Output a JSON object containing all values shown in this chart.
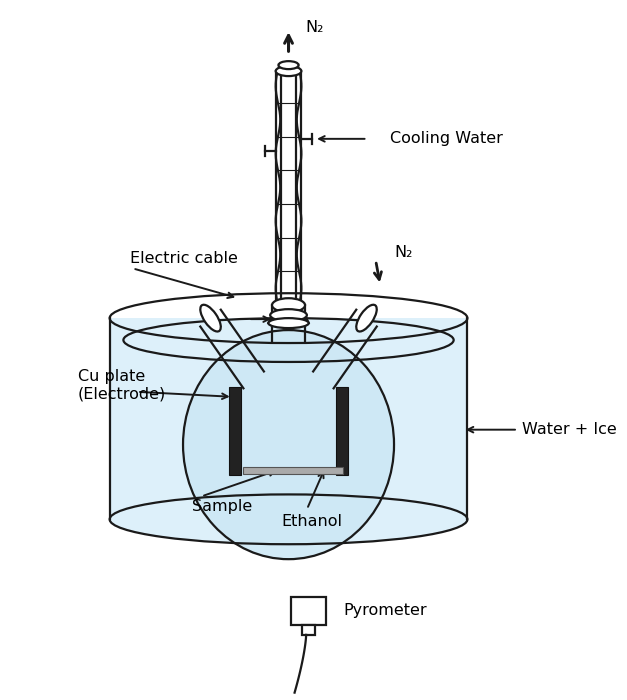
{
  "bg_color": "#ffffff",
  "line_color": "#1a1a1a",
  "light_blue": "#cde8f5",
  "light_blue2": "#ddf0fa",
  "electrode_color": "#222222",
  "sample_color": "#aaaaaa",
  "labels": {
    "N2_top": "N₂",
    "N2_right": "N₂",
    "cooling_water": "Cooling Water",
    "electric_cable": "Electric cable",
    "cu_plate": "Cu plate\n(Electrode)",
    "water_ice": "Water + Ice",
    "sample": "Sample",
    "ethanol": "Ethanol",
    "pyrometer": "Pyrometer"
  },
  "figsize": [
    6.27,
    7.0
  ],
  "dpi": 100
}
